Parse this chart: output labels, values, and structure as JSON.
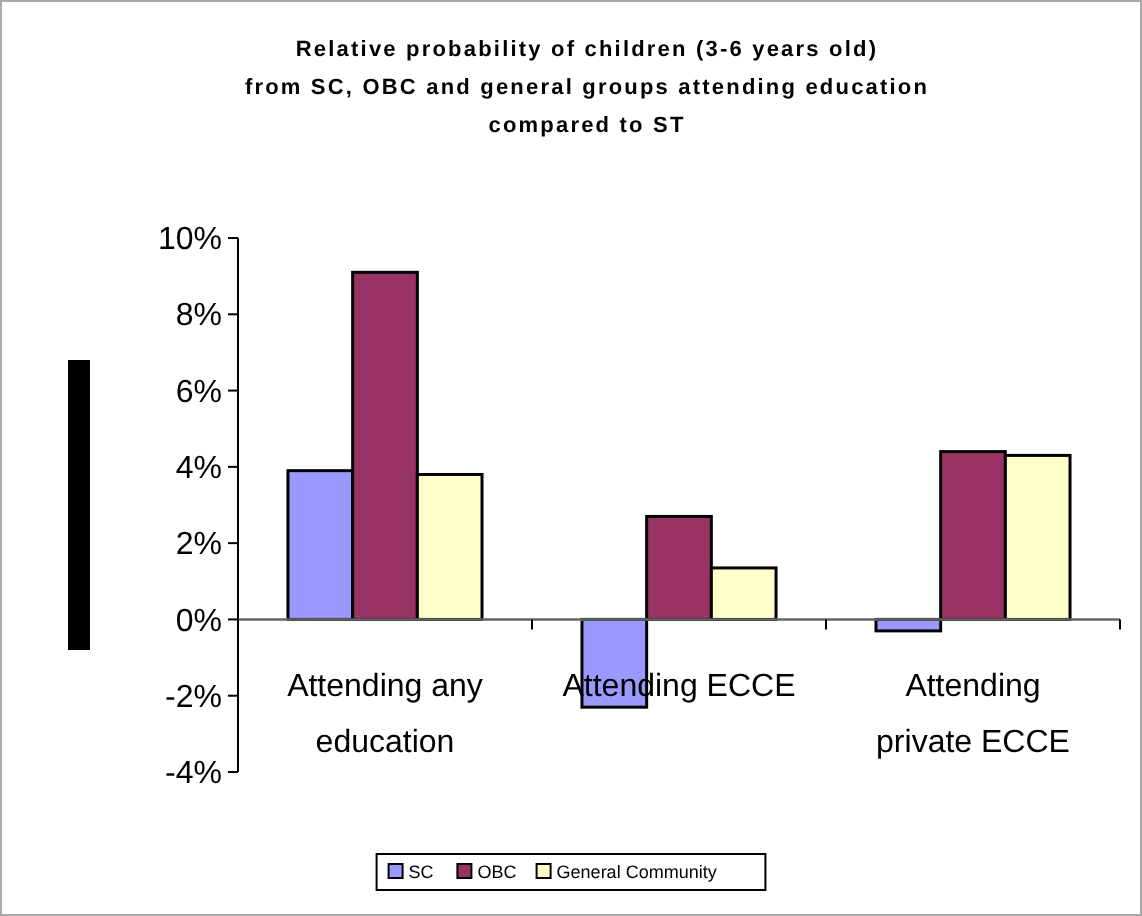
{
  "chart_data": {
    "type": "bar",
    "title": "Relative probability of children (3-6 years old) from SC, OBC and general groups attending education compared to ST",
    "categories": [
      "Attending any education",
      "Attending ECCE",
      "Attending private ECCE"
    ],
    "series": [
      {
        "name": "SC",
        "color": "#9999ff",
        "values": [
          0.039,
          -0.023,
          -0.003
        ]
      },
      {
        "name": "OBC",
        "color": "#993366",
        "values": [
          0.091,
          0.027,
          0.044
        ]
      },
      {
        "name": "General Community",
        "color": "#ffffcc",
        "values": [
          0.038,
          0.0135,
          0.043
        ]
      }
    ],
    "ylim": [
      -0.04,
      0.1
    ],
    "yticks": [
      {
        "value": -0.04,
        "label": "-4%"
      },
      {
        "value": -0.02,
        "label": "-2%"
      },
      {
        "value": 0,
        "label": "0%"
      },
      {
        "value": 0.02,
        "label": "2%"
      },
      {
        "value": 0.04,
        "label": "4%"
      },
      {
        "value": 0.06,
        "label": "6%"
      },
      {
        "value": 0.08,
        "label": "8%"
      },
      {
        "value": 0.1,
        "label": "10%"
      }
    ],
    "grid": false,
    "legend": "bottom"
  }
}
